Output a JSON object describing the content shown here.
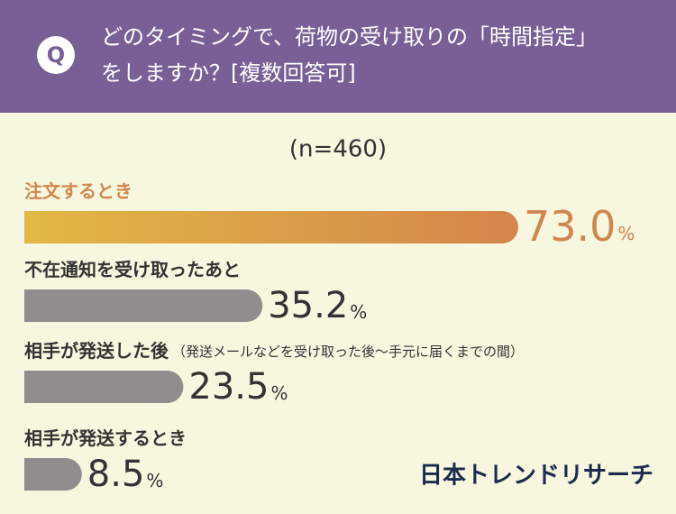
{
  "header": {
    "badge": "Q",
    "question_lines": [
      "どのタイミングで、荷物の受け取りの「時間指定」",
      "をしますか？[複数回答可]"
    ]
  },
  "chart_data": {
    "type": "bar",
    "orientation": "horizontal",
    "subtitle": "(n=460)",
    "categories": [
      "注文するとき",
      "不在通知を受け取ったあと",
      "相手が発送した後",
      "相手が発送するとき"
    ],
    "category_notes": [
      null,
      null,
      "（発送メールなどを受け取った後～手元に届くまでの間）",
      null
    ],
    "values": [
      73.0,
      35.2,
      23.5,
      8.5
    ],
    "value_labels": [
      "73.0",
      "35.2",
      "23.5",
      "8.5"
    ],
    "unit": "%",
    "colors": [
      [
        "#e2b844",
        "#d4854b"
      ],
      "#8f8d8d",
      "#8f8d8d",
      "#8f8d8d"
    ],
    "label_colors": [
      "#d0874d",
      "#333333",
      "#333333",
      "#333333"
    ],
    "value_colors": [
      "#d0874d",
      "#333333",
      "#333333",
      "#333333"
    ]
  },
  "footer": {
    "brand": "日本トレンドリサーチ"
  }
}
